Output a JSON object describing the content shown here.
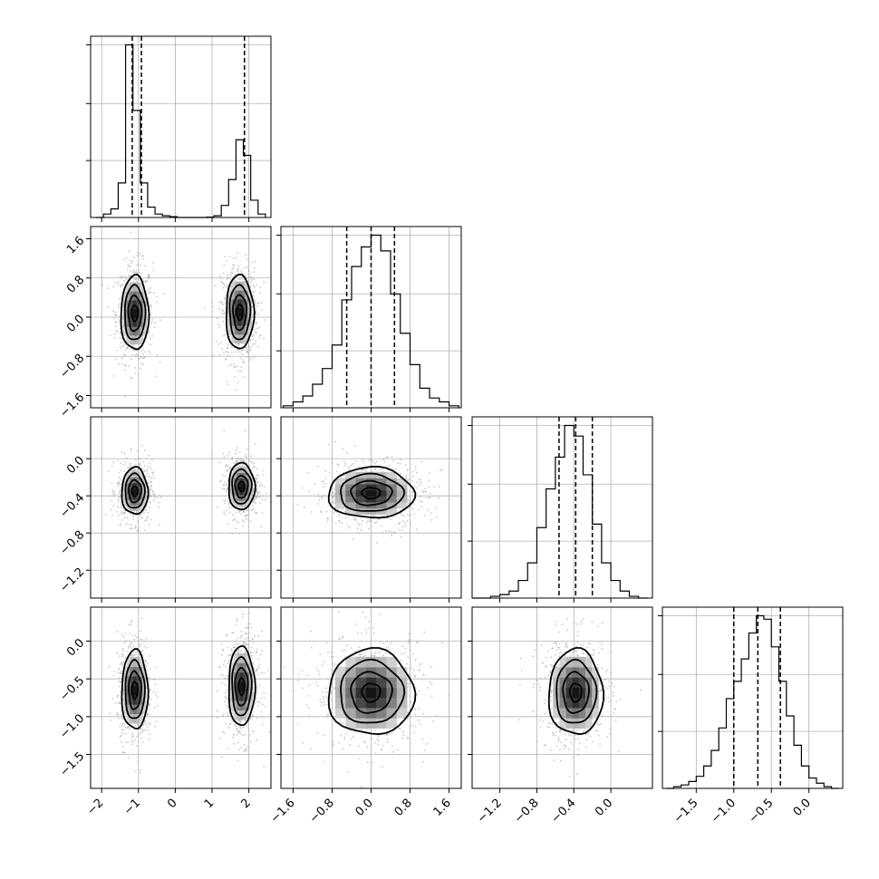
{
  "chart_data": {
    "type": "corner",
    "grid": true,
    "colors": {
      "line": "#000000",
      "grid": "#b0b0b0",
      "scatter": "#9a9a9a"
    },
    "parameters": [
      {
        "range": [
          -2.3,
          2.6
        ],
        "ticks": [
          -2,
          -1,
          0,
          1,
          2
        ],
        "tick_labels": [
          "−2",
          "−1",
          "0",
          "1",
          "2"
        ],
        "quantiles": [
          -1.17,
          -0.92,
          1.88
        ],
        "hist_x": [
          -2.05,
          -1.85,
          -1.65,
          -1.45,
          -1.25,
          -1.05,
          -0.85,
          -0.65,
          -0.45,
          -0.25,
          -0.05,
          0.15,
          0.35,
          0.55,
          0.75,
          0.95,
          1.15,
          1.35,
          1.55,
          1.75,
          1.95,
          2.15,
          2.35
        ],
        "hist_counts": [
          0,
          0.02,
          0.05,
          0.2,
          1.0,
          0.62,
          0.2,
          0.06,
          0.02,
          0.01,
          0.005,
          0,
          0,
          0,
          0,
          0.002,
          0.01,
          0.07,
          0.22,
          0.45,
          0.36,
          0.1,
          0.02
        ]
      },
      {
        "range": [
          -1.85,
          1.85
        ],
        "ticks": [
          -1.6,
          -0.8,
          0.0,
          0.8,
          1.6
        ],
        "tick_labels": [
          "−1.6",
          "−0.8",
          "0.0",
          "0.8",
          "1.6"
        ],
        "quantiles": [
          -0.5,
          0.0,
          0.48
        ],
        "hist_x": [
          -1.7,
          -1.5,
          -1.3,
          -1.1,
          -0.9,
          -0.7,
          -0.5,
          -0.3,
          -0.1,
          0.1,
          0.3,
          0.5,
          0.7,
          0.9,
          1.1,
          1.3,
          1.5,
          1.7
        ],
        "hist_counts": [
          0.01,
          0.03,
          0.06,
          0.12,
          0.2,
          0.32,
          0.55,
          0.72,
          0.82,
          0.88,
          0.8,
          0.58,
          0.38,
          0.22,
          0.1,
          0.05,
          0.03,
          0.01
        ]
      },
      {
        "range": [
          -1.5,
          0.45
        ],
        "ticks": [
          -1.2,
          -0.8,
          -0.4,
          0.0
        ],
        "tick_labels": [
          "−1.2",
          "−0.8",
          "−0.4",
          "0.0"
        ],
        "quantiles": [
          -0.56,
          -0.38,
          -0.2
        ],
        "hist_x": [
          -1.45,
          -1.35,
          -1.25,
          -1.15,
          -1.05,
          -0.95,
          -0.85,
          -0.75,
          -0.65,
          -0.55,
          -0.45,
          -0.35,
          -0.25,
          -0.15,
          -0.05,
          0.05,
          0.15,
          0.25,
          0.35
        ],
        "hist_counts": [
          0,
          0,
          0.01,
          0.02,
          0.04,
          0.1,
          0.2,
          0.4,
          0.62,
          0.8,
          0.98,
          0.92,
          0.7,
          0.42,
          0.2,
          0.1,
          0.04,
          0.01,
          0
        ]
      },
      {
        "range": [
          -1.95,
          0.45
        ],
        "ticks": [
          -1.5,
          -1.0,
          -0.5,
          0.0
        ],
        "tick_labels": [
          "−1.5",
          "−1.0",
          "−0.5",
          "0.0"
        ],
        "quantiles": [
          -1.0,
          -0.68,
          -0.38
        ],
        "hist_x": [
          -1.85,
          -1.75,
          -1.65,
          -1.55,
          -1.45,
          -1.35,
          -1.25,
          -1.15,
          -1.05,
          -0.95,
          -0.85,
          -0.75,
          -0.65,
          -0.55,
          -0.45,
          -0.35,
          -0.25,
          -0.15,
          -0.05,
          0.05,
          0.15,
          0.25,
          0.35
        ],
        "hist_counts": [
          0,
          0.01,
          0.02,
          0.04,
          0.07,
          0.13,
          0.22,
          0.35,
          0.52,
          0.62,
          0.75,
          0.9,
          1.0,
          0.98,
          0.82,
          0.62,
          0.42,
          0.25,
          0.13,
          0.06,
          0.03,
          0.01,
          0
        ]
      }
    ],
    "clusters": [
      [
        [
          -1.1,
          0.08,
          0.18,
          0.36
        ],
        [
          1.75,
          0.1,
          0.18,
          0.36
        ]
      ],
      [
        [
          -1.1,
          -0.35,
          0.17,
          0.12
        ],
        [
          1.8,
          -0.3,
          0.17,
          0.12
        ]
      ],
      [
        [
          -1.1,
          -0.65,
          0.17,
          0.25
        ],
        [
          1.8,
          -0.6,
          0.17,
          0.25
        ]
      ],
      [
        [
          0.0,
          -0.37,
          0.42,
          0.13
        ]
      ],
      [
        [
          0.0,
          -0.68,
          0.42,
          0.27
        ]
      ],
      [
        [
          -0.38,
          -0.68,
          0.14,
          0.27
        ]
      ]
    ]
  }
}
